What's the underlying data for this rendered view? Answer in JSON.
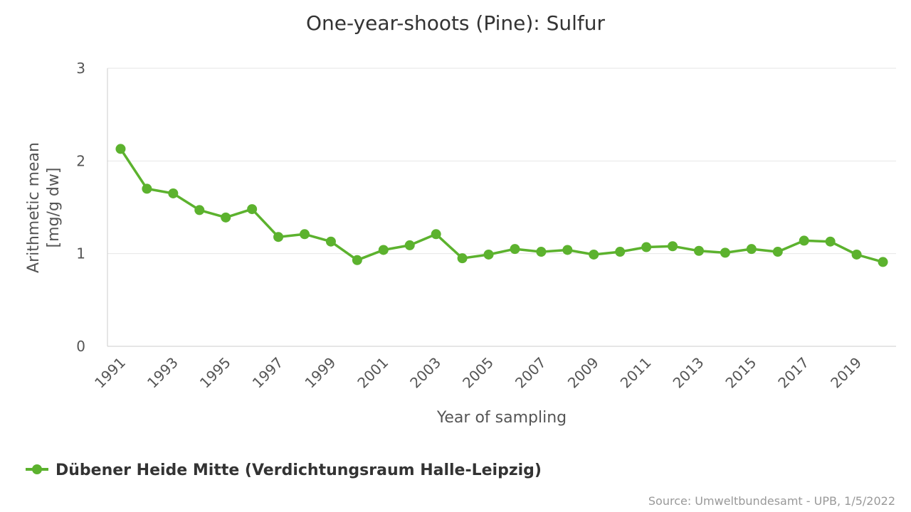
{
  "chart_data": {
    "type": "line",
    "title": "One-year-shoots (Pine): Sulfur",
    "xlabel": "Year of sampling",
    "ylabel_lines": [
      "Arithmetic mean",
      "[mg/g dw]"
    ],
    "ylim": [
      0,
      3
    ],
    "yticks": [
      0,
      1,
      2,
      3
    ],
    "xticks": [
      1991,
      1993,
      1995,
      1997,
      1999,
      2001,
      2003,
      2005,
      2007,
      2009,
      2011,
      2013,
      2015,
      2017,
      2019
    ],
    "xlim": [
      1990.5,
      2020.5
    ],
    "grid": true,
    "legend_position": "bottom-left",
    "series": [
      {
        "name": "Dübener Heide Mitte (Verdichtungsraum Halle-Leipzig)",
        "color": "#5cb22e",
        "x": [
          1991,
          1992,
          1993,
          1994,
          1995,
          1996,
          1997,
          1998,
          1999,
          2000,
          2001,
          2002,
          2003,
          2004,
          2005,
          2006,
          2007,
          2008,
          2009,
          2010,
          2011,
          2012,
          2013,
          2014,
          2015,
          2016,
          2017,
          2018,
          2019,
          2020
        ],
        "y": [
          2.13,
          1.7,
          1.65,
          1.47,
          1.39,
          1.48,
          1.18,
          1.21,
          1.13,
          0.93,
          1.04,
          1.09,
          1.21,
          0.95,
          0.99,
          1.05,
          1.02,
          1.04,
          0.99,
          1.02,
          1.07,
          1.08,
          1.03,
          1.01,
          1.05,
          1.02,
          1.14,
          1.13,
          0.99,
          0.91
        ]
      }
    ],
    "source": "Source: Umweltbundesamt - UPB, 1/5/2022"
  }
}
